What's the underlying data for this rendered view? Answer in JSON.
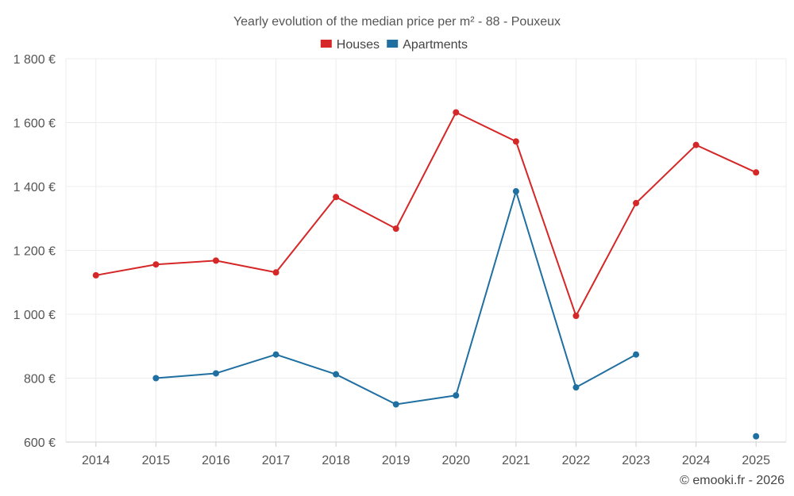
{
  "chart_data": {
    "type": "line",
    "title": "Yearly evolution of the median price per m² - 88 - Pouxeux",
    "categories": [
      "2014",
      "2015",
      "2016",
      "2017",
      "2018",
      "2019",
      "2020",
      "2021",
      "2022",
      "2023",
      "2024",
      "2025"
    ],
    "ylim": [
      600,
      1800
    ],
    "yticks": [
      600,
      800,
      1000,
      1200,
      1400,
      1600,
      1800
    ],
    "ytick_labels": [
      "600 €",
      "800 €",
      "1 000 €",
      "1 200 €",
      "1 400 €",
      "1 600 €",
      "1 800 €"
    ],
    "grid": true,
    "legend_position": "top-center",
    "series": [
      {
        "name": "Houses",
        "color": "#d62728",
        "values": [
          1122,
          1156,
          1168,
          1131,
          1367,
          1268,
          1632,
          1541,
          995,
          1348,
          1530,
          1444
        ]
      },
      {
        "name": "Apartments",
        "color": "#1f6fa0",
        "values": [
          null,
          800,
          815,
          874,
          812,
          718,
          746,
          1385,
          771,
          874,
          null,
          618
        ]
      }
    ]
  },
  "footer": {
    "credit": "© emooki.fr - 2026"
  }
}
